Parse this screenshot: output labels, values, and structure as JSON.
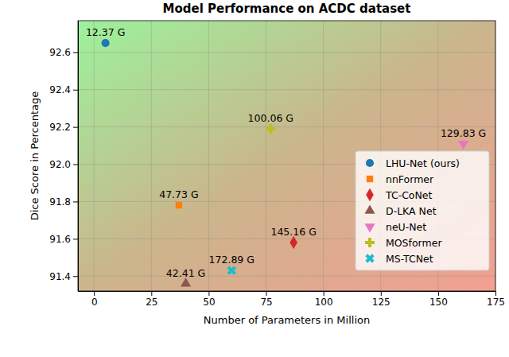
{
  "chart_data": {
    "type": "scatter",
    "title": "Model Performance on ACDC dataset",
    "x_label": "Number of Parameters in Million",
    "y_label": "Dice Score in Percentage",
    "xlim": [
      -7,
      175
    ],
    "xticks": [
      0,
      25,
      50,
      75,
      100,
      125,
      150,
      175
    ],
    "ylim": [
      91.32,
      92.77
    ],
    "yticks": [
      91.4,
      91.6,
      91.8,
      {
        "value": 92,
        "label": "92.0"
      },
      92.2,
      92.4,
      92.6
    ],
    "grid": true,
    "legend": "lower right",
    "series": [
      {
        "name": "LHU-Net (ours)",
        "color": "#1f77b4",
        "marker": "circle",
        "x": [
          5
        ],
        "values": [
          92.65
        ],
        "labels": [
          "12.37 G"
        ]
      },
      {
        "name": "nnFormer",
        "color": "#ff7f0e",
        "marker": "square",
        "x": [
          37
        ],
        "values": [
          91.78
        ],
        "labels": [
          "47.73 G"
        ]
      },
      {
        "name": "TC-CoNet",
        "color": "#d62728",
        "marker": "diamond",
        "x": [
          87
        ],
        "values": [
          91.58
        ],
        "labels": [
          "145.16 G"
        ]
      },
      {
        "name": "D-LKA Net",
        "color": "#8c564b",
        "marker": "triangle-up",
        "x": [
          40
        ],
        "values": [
          91.36
        ],
        "labels": [
          "42.41 G"
        ]
      },
      {
        "name": "neU-Net",
        "color": "#e377c2",
        "marker": "triangle-down",
        "x": [
          161
        ],
        "values": [
          92.11
        ],
        "labels": [
          "129.83 G"
        ]
      },
      {
        "name": "MOSformer",
        "color": "#bcbd22",
        "marker": "plus",
        "x": [
          77
        ],
        "values": [
          92.19
        ],
        "labels": [
          "100.06 G"
        ]
      },
      {
        "name": "MS-TCNet",
        "color": "#17becf",
        "marker": "x",
        "x": [
          60
        ],
        "values": [
          91.43
        ],
        "labels": [
          "172.89 G"
        ]
      }
    ]
  }
}
